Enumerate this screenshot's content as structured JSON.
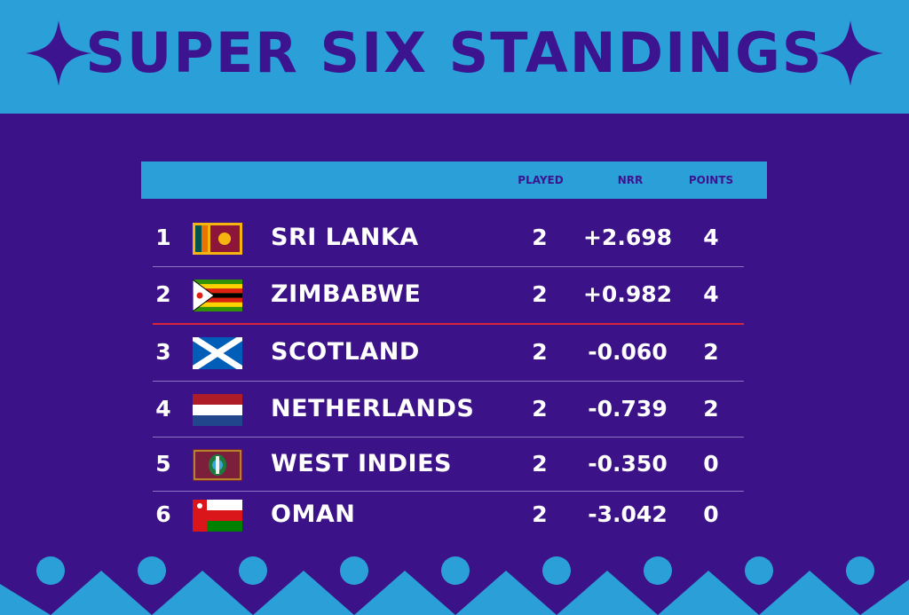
{
  "title": "SUPER SIX STANDINGS",
  "columns": {
    "played": "PLAYED",
    "nrr": "NRR",
    "points": "POINTS"
  },
  "rows": [
    {
      "rank": "1",
      "team": "SRI LANKA",
      "flag": "sri-lanka-flag-icon",
      "played": "2",
      "nrr": "+2.698",
      "points": "4"
    },
    {
      "rank": "2",
      "team": "ZIMBABWE",
      "flag": "zimbabwe-flag-icon",
      "played": "2",
      "nrr": "+0.982",
      "points": "4"
    },
    {
      "rank": "3",
      "team": "SCOTLAND",
      "flag": "scotland-flag-icon",
      "played": "2",
      "nrr": "-0.060",
      "points": "2"
    },
    {
      "rank": "4",
      "team": "NETHERLANDS",
      "flag": "netherlands-flag-icon",
      "played": "2",
      "nrr": "-0.739",
      "points": "2"
    },
    {
      "rank": "5",
      "team": "WEST INDIES",
      "flag": "west-indies-flag-icon",
      "played": "2",
      "nrr": "-0.350",
      "points": "0"
    },
    {
      "rank": "6",
      "team": "OMAN",
      "flag": "oman-flag-icon",
      "played": "2",
      "nrr": "-3.042",
      "points": "0"
    }
  ],
  "colors": {
    "background": "#3b1288",
    "accent": "#2ba0d8",
    "title": "#3d1490",
    "qualification_line": "#d8253a"
  }
}
